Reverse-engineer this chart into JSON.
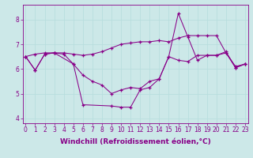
{
  "bg_color": "#cce8e8",
  "line1_x": [
    0,
    1,
    2,
    3,
    4,
    5,
    6,
    7,
    8,
    9,
    10,
    11,
    12,
    13,
    14,
    15,
    16,
    17,
    18,
    19,
    20,
    21,
    22,
    23
  ],
  "line1_y": [
    6.5,
    5.95,
    6.6,
    6.65,
    6.6,
    6.2,
    5.75,
    5.5,
    5.35,
    5.0,
    5.15,
    5.25,
    5.2,
    5.5,
    5.6,
    6.5,
    6.35,
    6.3,
    6.55,
    6.55,
    6.55,
    6.65,
    6.05,
    6.2
  ],
  "line2_x": [
    0,
    1,
    2,
    3,
    4,
    5,
    6,
    7,
    8,
    9,
    10,
    11,
    12,
    13,
    14,
    15,
    16,
    17,
    18,
    19,
    20,
    21,
    22,
    23
  ],
  "line2_y": [
    6.5,
    6.6,
    6.65,
    6.65,
    6.65,
    6.6,
    6.55,
    6.6,
    6.7,
    6.85,
    7.0,
    7.05,
    7.1,
    7.1,
    7.15,
    7.1,
    7.25,
    7.35,
    7.35,
    7.35,
    7.35,
    6.65,
    6.1,
    6.2
  ],
  "line3_x": [
    0,
    1,
    2,
    3,
    5,
    6,
    9,
    10,
    11,
    12,
    13,
    14,
    15,
    16,
    17,
    18,
    19,
    20,
    21,
    22,
    23
  ],
  "line3_y": [
    6.5,
    5.95,
    6.6,
    6.65,
    6.2,
    4.55,
    4.5,
    4.45,
    4.45,
    5.15,
    5.25,
    5.6,
    6.5,
    8.25,
    7.3,
    6.35,
    6.55,
    6.55,
    6.7,
    6.05,
    6.2
  ],
  "line_color": "#880088",
  "marker": "+",
  "markersize": 3.5,
  "linewidth": 0.75,
  "xlim": [
    -0.3,
    23.3
  ],
  "ylim": [
    3.8,
    8.6
  ],
  "yticks": [
    4,
    5,
    6,
    7,
    8
  ],
  "xticks": [
    0,
    1,
    2,
    3,
    4,
    5,
    6,
    7,
    8,
    9,
    10,
    11,
    12,
    13,
    14,
    15,
    16,
    17,
    18,
    19,
    20,
    21,
    22,
    23
  ],
  "xlabel": "Windchill (Refroidissement éolien,°C)",
  "xlabel_color": "#880088",
  "xlabel_fontsize": 6.5,
  "tick_fontsize": 5.5,
  "grid_color": "#b8dede",
  "grid_linewidth": 0.6
}
